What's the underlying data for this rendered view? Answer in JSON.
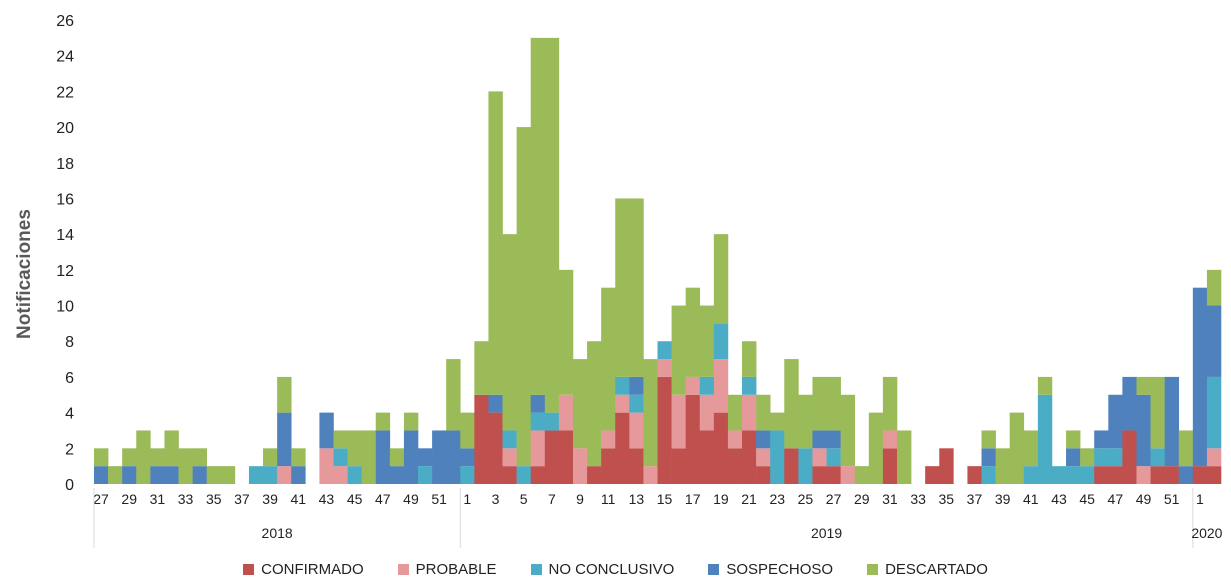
{
  "chart_data": {
    "type": "bar",
    "stacked": true,
    "title": "",
    "xlabel": "",
    "ylabel": "Notificaciones",
    "ylim": [
      0,
      26
    ],
    "yticks": [
      0,
      2,
      4,
      6,
      8,
      10,
      12,
      14,
      16,
      18,
      20,
      22,
      24,
      26
    ],
    "grid": false,
    "legend_position": "bottom",
    "bar_gap": 0,
    "categories": [
      "27",
      "28",
      "29",
      "30",
      "31",
      "32",
      "33",
      "34",
      "35",
      "36",
      "37",
      "38",
      "39",
      "40",
      "41",
      "42",
      "43",
      "44",
      "45",
      "46",
      "47",
      "48",
      "49",
      "50",
      "51",
      "52",
      "1",
      "2",
      "3",
      "4",
      "5",
      "6",
      "7",
      "8",
      "9",
      "10",
      "11",
      "12",
      "13",
      "14",
      "15",
      "16",
      "17",
      "18",
      "19",
      "20",
      "21",
      "22",
      "23",
      "24",
      "25",
      "26",
      "27",
      "28",
      "29",
      "30",
      "31",
      "32",
      "33",
      "34",
      "35",
      "36",
      "37",
      "38",
      "39",
      "40",
      "41",
      "42",
      "43",
      "44",
      "45",
      "46",
      "47",
      "48",
      "49",
      "50",
      "51",
      "52",
      "1",
      "2"
    ],
    "x_tick_labels": [
      "27",
      "29",
      "31",
      "33",
      "35",
      "37",
      "39",
      "41",
      "43",
      "45",
      "47",
      "49",
      "51",
      "1",
      "3",
      "5",
      "7",
      "9",
      "11",
      "13",
      "15",
      "17",
      "19",
      "21",
      "23",
      "25",
      "27",
      "29",
      "31",
      "33",
      "35",
      "37",
      "39",
      "41",
      "43",
      "45",
      "47",
      "49",
      "51",
      "1"
    ],
    "year_groups": [
      {
        "label": "2018",
        "start_index": 0,
        "count": 26
      },
      {
        "label": "2019",
        "start_index": 26,
        "count": 52
      },
      {
        "label": "2020",
        "start_index": 78,
        "count": 2
      }
    ],
    "series": [
      {
        "name": "CONFIRMADO",
        "color": "#c0504d",
        "values": [
          0,
          0,
          0,
          0,
          0,
          0,
          0,
          0,
          0,
          0,
          0,
          0,
          0,
          0,
          0,
          0,
          0,
          0,
          0,
          0,
          0,
          0,
          0,
          0,
          0,
          0,
          0,
          5,
          4,
          1,
          0,
          1,
          3,
          3,
          0,
          1,
          2,
          4,
          2,
          0,
          6,
          2,
          5,
          3,
          4,
          2,
          3,
          1,
          0,
          2,
          0,
          1,
          1,
          0,
          0,
          0,
          2,
          0,
          0,
          1,
          2,
          0,
          1,
          0,
          0,
          0,
          0,
          0,
          0,
          0,
          0,
          1,
          1,
          3,
          0,
          1,
          1,
          0,
          1,
          1
        ]
      },
      {
        "name": "PROBABLE",
        "color": "#e6999a",
        "values": [
          0,
          0,
          0,
          0,
          0,
          0,
          0,
          0,
          0,
          0,
          0,
          0,
          0,
          1,
          0,
          0,
          2,
          1,
          0,
          0,
          0,
          0,
          0,
          0,
          0,
          0,
          0,
          0,
          0,
          1,
          0,
          2,
          0,
          2,
          2,
          0,
          1,
          1,
          2,
          1,
          1,
          3,
          1,
          2,
          3,
          1,
          2,
          1,
          0,
          0,
          0,
          1,
          0,
          1,
          0,
          0,
          1,
          0,
          0,
          0,
          0,
          0,
          0,
          0,
          0,
          0,
          0,
          0,
          0,
          0,
          0,
          0,
          0,
          0,
          1,
          0,
          0,
          0,
          0,
          1
        ]
      },
      {
        "name": "NO CONCLUSIVO",
        "color": "#4bacc6",
        "values": [
          0,
          0,
          0,
          0,
          0,
          0,
          0,
          0,
          0,
          0,
          0,
          1,
          1,
          0,
          0,
          0,
          0,
          1,
          1,
          0,
          0,
          0,
          0,
          1,
          0,
          0,
          1,
          0,
          0,
          1,
          1,
          1,
          1,
          0,
          0,
          0,
          0,
          1,
          1,
          0,
          1,
          0,
          0,
          1,
          2,
          0,
          1,
          0,
          3,
          0,
          2,
          0,
          1,
          0,
          0,
          0,
          0,
          0,
          0,
          0,
          0,
          0,
          0,
          1,
          0,
          0,
          1,
          5,
          1,
          1,
          1,
          1,
          1,
          0,
          0,
          1,
          0,
          0,
          0,
          4
        ]
      },
      {
        "name": "SOSPECHOSO",
        "color": "#4f81bd",
        "values": [
          1,
          0,
          1,
          0,
          1,
          1,
          0,
          1,
          0,
          0,
          0,
          0,
          0,
          3,
          1,
          0,
          2,
          0,
          0,
          0,
          3,
          1,
          3,
          1,
          3,
          3,
          1,
          0,
          1,
          0,
          0,
          1,
          0,
          0,
          0,
          0,
          0,
          0,
          1,
          0,
          0,
          0,
          0,
          0,
          0,
          0,
          0,
          1,
          0,
          0,
          0,
          1,
          1,
          0,
          0,
          0,
          0,
          0,
          0,
          0,
          0,
          0,
          0,
          1,
          0,
          0,
          0,
          0,
          0,
          1,
          0,
          1,
          3,
          3,
          4,
          0,
          5,
          1,
          10,
          4
        ]
      },
      {
        "name": "DESCARTADO",
        "color": "#9bbb59",
        "values": [
          1,
          1,
          1,
          3,
          1,
          2,
          2,
          1,
          1,
          1,
          0,
          0,
          1,
          2,
          1,
          0,
          0,
          1,
          2,
          3,
          1,
          1,
          1,
          0,
          0,
          4,
          2,
          3,
          17,
          11,
          19,
          20,
          21,
          7,
          5,
          7,
          8,
          10,
          10,
          6,
          0,
          5,
          5,
          4,
          5,
          2,
          2,
          2,
          1,
          5,
          3,
          3,
          3,
          4,
          1,
          4,
          3,
          3,
          0,
          0,
          0,
          0,
          0,
          1,
          2,
          4,
          2,
          1,
          0,
          1,
          1,
          0,
          0,
          0,
          1,
          4,
          0,
          2,
          0,
          2
        ]
      }
    ]
  }
}
